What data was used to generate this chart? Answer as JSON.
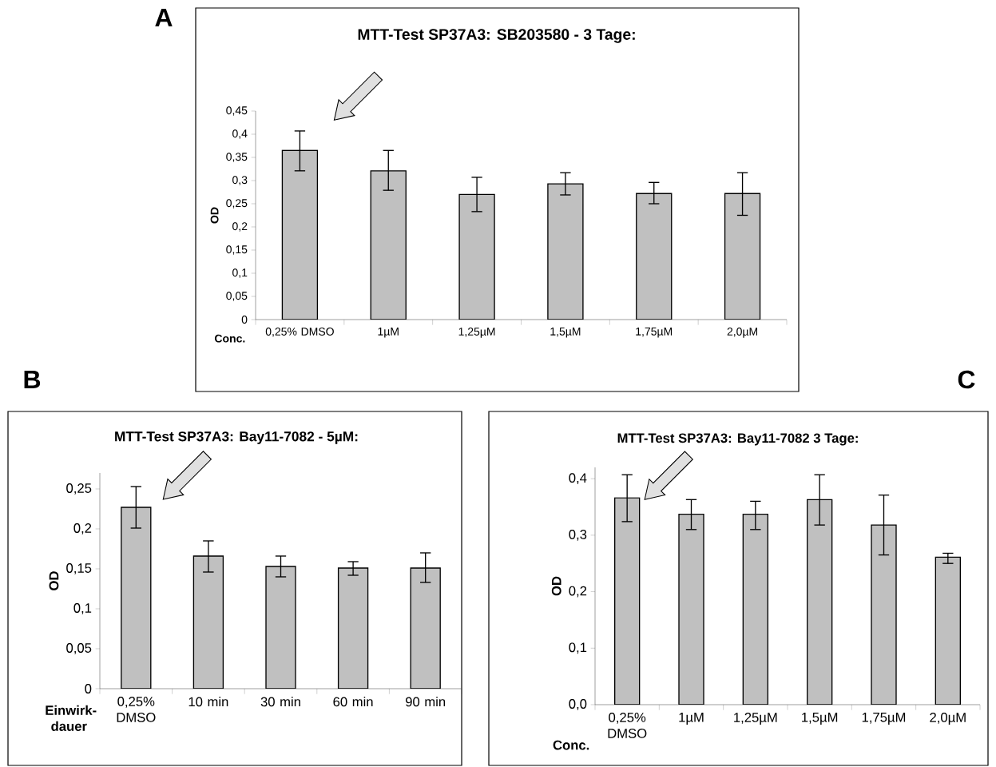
{
  "chart_data": [
    {
      "type": "bar",
      "title": "MTT-Test SP37A3: SB203580 - 3 Tage:",
      "xlabel": "Conc.",
      "ylabel": "OD",
      "color": "#c0c0c0",
      "categories": [
        "0,25% DMSO",
        "1µM",
        "1,25µM",
        "1,5µM",
        "1,75µM",
        "2,0µM"
      ],
      "values": [
        0.365,
        0.321,
        0.27,
        0.293,
        0.272,
        0.272
      ],
      "errors": [
        [
          0.321,
          0.407
        ],
        [
          0.279,
          0.365
        ],
        [
          0.233,
          0.307
        ],
        [
          0.269,
          0.317
        ],
        [
          0.25,
          0.296
        ],
        [
          0.225,
          0.317
        ]
      ],
      "ylim": [
        0,
        0.45
      ],
      "yticks": [
        0,
        {
          "value": 0.05,
          "label": "0,05"
        },
        {
          "value": 0.1,
          "label": "0,1"
        },
        {
          "value": 0.15,
          "label": "0,15"
        },
        {
          "value": 0.2,
          "label": "0,2"
        },
        {
          "value": 0.25,
          "label": "0,25"
        },
        {
          "value": 0.3,
          "label": "0,3"
        },
        {
          "value": 0.35,
          "label": "0,35"
        },
        {
          "value": 0.4,
          "label": "0,4"
        },
        {
          "value": 0.45,
          "label": "0,45"
        }
      ],
      "annotations": [
        "A"
      ]
    },
    {
      "type": "bar",
      "title": "MTT-Test SP37A3: Bay11-7082 - 5µM:",
      "xlabel": "Einwirk-dauer",
      "ylabel": "OD",
      "color": "#c0c0c0",
      "categories": [
        "0,25% DMSO",
        "10 min",
        "30 min",
        "60 min",
        "90 min"
      ],
      "values": [
        0.227,
        0.166,
        0.153,
        0.151,
        0.151
      ],
      "errors": [
        [
          0.201,
          0.253
        ],
        [
          0.146,
          0.185
        ],
        [
          0.14,
          0.166
        ],
        [
          0.142,
          0.159
        ],
        [
          0.133,
          0.17
        ]
      ],
      "ylim": [
        0,
        0.27
      ],
      "yticks": [
        0,
        {
          "value": 0.05,
          "label": "0,05"
        },
        {
          "value": 0.1,
          "label": "0,1"
        },
        {
          "value": 0.15,
          "label": "0,15"
        },
        {
          "value": 0.2,
          "label": "0,2"
        },
        {
          "value": 0.25,
          "label": "0,25"
        }
      ],
      "annotations": [
        "B"
      ]
    },
    {
      "type": "bar",
      "title": "MTT-Test SP37A3: Bay11-7082 3 Tage:",
      "xlabel": "Conc.",
      "ylabel": "OD",
      "color": "#c0c0c0",
      "categories": [
        "0,25% DMSO",
        "1µM",
        "1,25µM",
        "1,5µM",
        "1,75µM",
        "2,0µM"
      ],
      "values": [
        0.366,
        0.337,
        0.337,
        0.363,
        0.318,
        0.261
      ],
      "errors": [
        [
          0.324,
          0.407
        ],
        [
          0.31,
          0.363
        ],
        [
          0.31,
          0.36
        ],
        [
          0.318,
          0.407
        ],
        [
          0.265,
          0.371
        ],
        [
          0.25,
          0.268
        ]
      ],
      "ylim": [
        0,
        0.42
      ],
      "yticks": [
        {
          "value": 0,
          "label": "0,0"
        },
        {
          "value": 0.1,
          "label": "0,1"
        },
        {
          "value": 0.2,
          "label": "0,2"
        },
        {
          "value": 0.3,
          "label": "0,3"
        },
        {
          "value": 0.4,
          "label": "0,4"
        }
      ],
      "annotations": [
        "C"
      ]
    }
  ]
}
